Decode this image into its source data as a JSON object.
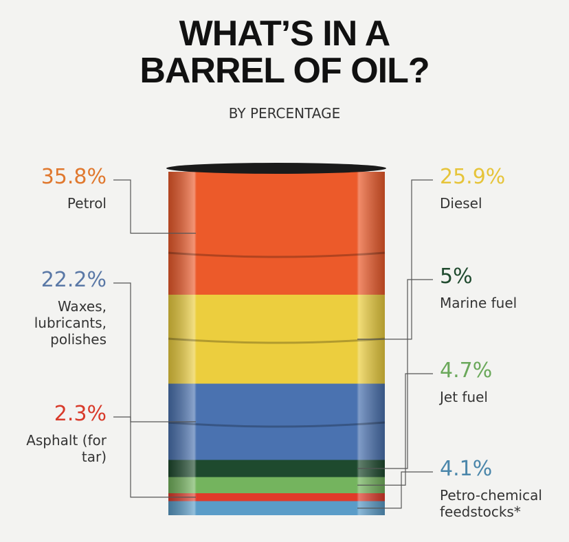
{
  "chart_data": {
    "type": "barrel",
    "title": "WHAT’S IN A BARREL OF OIL?",
    "subtitle": "BY PERCENTAGE",
    "categories": [
      "Petrol",
      "Diesel",
      "Waxes, lubricants, polishes",
      "Marine fuel",
      "Jet fuel",
      "Asphalt (for tar)",
      "Petro-chemical feedstocks*"
    ],
    "values": [
      35.8,
      25.9,
      22.2,
      5,
      4.7,
      2.3,
      4.1
    ],
    "value_labels": [
      "35.8%",
      "25.9%",
      "22.2%",
      "5%",
      "4.7%",
      "2.3%",
      "4.1%"
    ],
    "colors": [
      "#ec5a2a",
      "#ecce3e",
      "#4a72b0",
      "#1e4a2e",
      "#74b45e",
      "#e03a2a",
      "#5a9cc8"
    ],
    "label_colors": [
      "#e0782e",
      "#e6c43a",
      "#5a78a6",
      "#1f4a2e",
      "#6aa85a",
      "#d83a2a",
      "#4a86aa"
    ]
  }
}
